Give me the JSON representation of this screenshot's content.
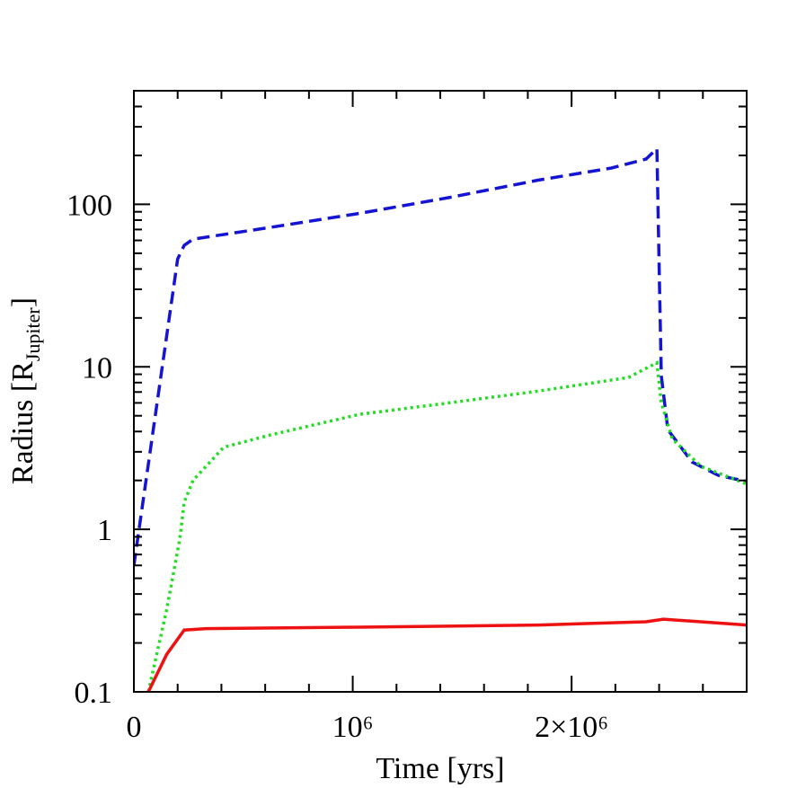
{
  "chart_data": {
    "type": "line",
    "xlabel": "Time [yrs]",
    "ylabel": [
      "Radius [R",
      "Jupiter",
      "]"
    ],
    "xlim": [
      0,
      2800000
    ],
    "ylim": [
      0.1,
      500
    ],
    "ylog": true,
    "grid": false,
    "xticks": [
      0,
      {
        "value": 1000000,
        "label": "10⁶"
      },
      {
        "value": 2000000,
        "label": "2×10⁶"
      }
    ],
    "xminorticks": [
      200000,
      400000,
      600000,
      800000,
      1200000,
      1400000,
      1600000,
      1800000,
      2200000,
      2400000,
      2600000
    ],
    "yticks": [
      0.1,
      1,
      10,
      100
    ],
    "yminorticks": [
      0.2,
      0.3,
      0.4,
      0.5,
      0.6,
      0.7,
      0.8,
      0.9,
      2,
      3,
      4,
      5,
      6,
      7,
      8,
      9,
      20,
      30,
      40,
      50,
      60,
      70,
      80,
      90,
      200,
      300,
      400
    ],
    "series": [
      {
        "color": "#1414d2",
        "linestyle": "dashed",
        "x": [
          0,
          200000,
          230000,
          270000,
          620000,
          1030000,
          1440000,
          1850000,
          2180000,
          2340000,
          2390000,
          2400000,
          2410000,
          2440000,
          2550000,
          2670000,
          2800000
        ],
        "values": [
          0.6,
          46,
          56,
          61,
          72,
          88,
          110,
          141,
          167,
          190,
          220,
          41,
          8.8,
          4.1,
          2.6,
          2.15,
          1.97
        ]
      },
      {
        "color": "#22dd22",
        "linestyle": "dotted",
        "x": [
          66000,
          150000,
          210000,
          230000,
          270000,
          410000,
          620000,
          1030000,
          1440000,
          1850000,
          2260000,
          2390000,
          2410000,
          2460000,
          2590000,
          2800000
        ],
        "values": [
          0.1,
          0.32,
          0.88,
          1.47,
          2.0,
          3.2,
          3.8,
          5.1,
          6.0,
          7.1,
          8.6,
          10.6,
          6.0,
          3.6,
          2.45,
          1.9
        ]
      },
      {
        "color": "#ee1111",
        "linestyle": "solid",
        "x": [
          66000,
          150000,
          230000,
          330000,
          1030000,
          1850000,
          2340000,
          2420000,
          2590000,
          2800000
        ],
        "values": [
          0.1,
          0.17,
          0.24,
          0.245,
          0.25,
          0.258,
          0.27,
          0.28,
          0.27,
          0.258
        ]
      }
    ]
  }
}
